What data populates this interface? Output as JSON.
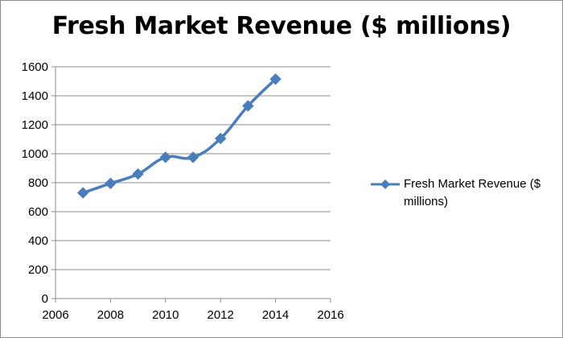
{
  "chart_data": {
    "type": "line",
    "title": "Fresh Market Revenue ($ millions)",
    "xlabel": "",
    "ylabel": "",
    "xlim": [
      2006,
      2016
    ],
    "ylim": [
      0,
      1600
    ],
    "x_ticks": [
      2006,
      2008,
      2010,
      2012,
      2014,
      2016
    ],
    "y_ticks": [
      0,
      200,
      400,
      600,
      800,
      1000,
      1200,
      1400,
      1600
    ],
    "grid": true,
    "legend_position": "right",
    "series": [
      {
        "name": "Fresh Market Revenue ($ millions)",
        "color": "#4a7ebb",
        "marker": "diamond",
        "smooth": true,
        "x": [
          2007,
          2008,
          2009,
          2010,
          2011,
          2012,
          2013,
          2014
        ],
        "y": [
          730,
          795,
          860,
          975,
          975,
          1105,
          1330,
          1515
        ]
      }
    ]
  }
}
